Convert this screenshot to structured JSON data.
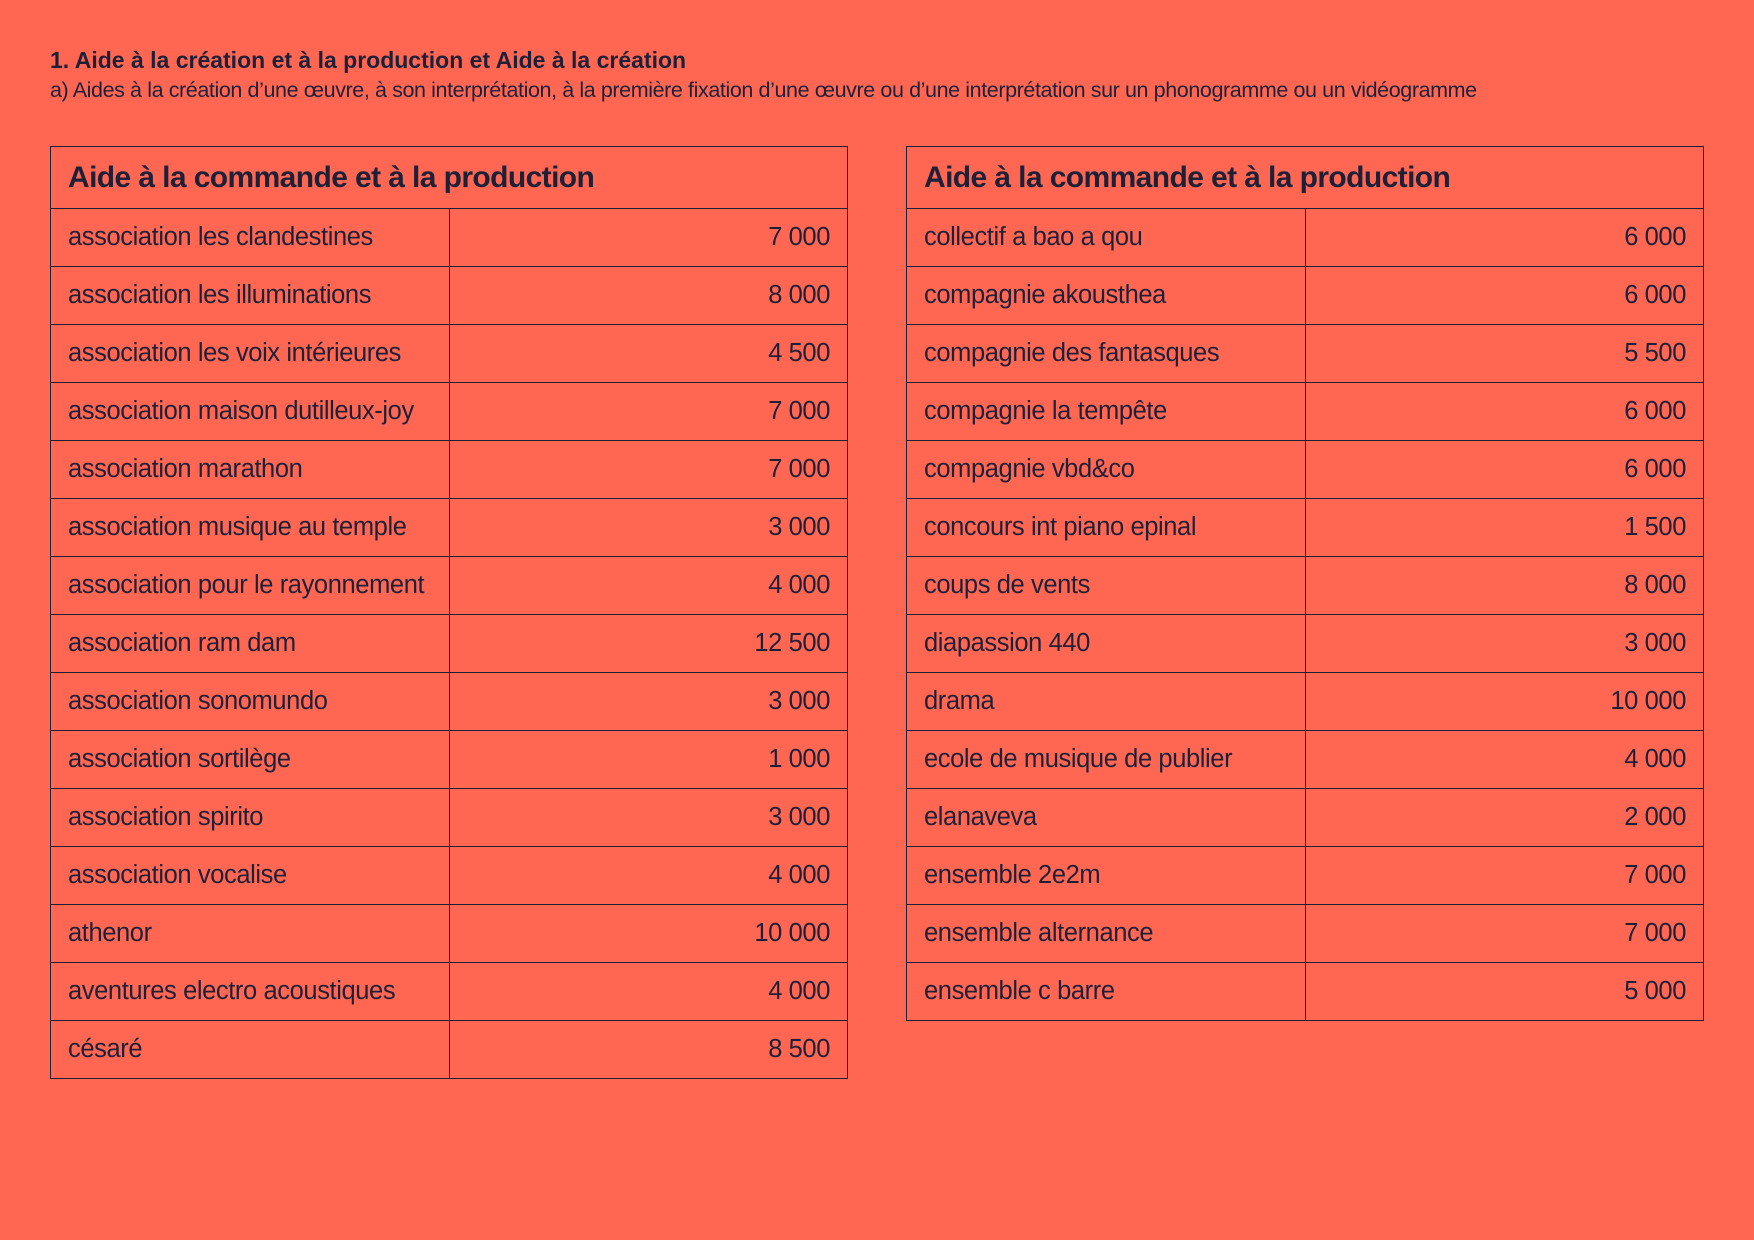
{
  "header": {
    "title": "1. Aide à la création et à la production et Aide à la création",
    "subtitle": "a) Aides à la création d’une œuvre, à son interprétation, à la première fixation d’une œuvre ou d’une interprétation sur un phonogramme ou un vidéogramme"
  },
  "tables": [
    {
      "title": "Aide à la commande et à la production",
      "rows": [
        {
          "name": "association les clandestines",
          "amount": "7 000"
        },
        {
          "name": "association les illuminations",
          "amount": "8 000"
        },
        {
          "name": "association les voix intérieures",
          "amount": "4 500"
        },
        {
          "name": "association maison dutilleux-joy",
          "amount": "7 000"
        },
        {
          "name": "association marathon",
          "amount": "7 000"
        },
        {
          "name": "association musique au temple",
          "amount": "3 000"
        },
        {
          "name": "association pour le rayonnement",
          "amount": "4 000"
        },
        {
          "name": "association ram dam",
          "amount": "12 500"
        },
        {
          "name": "association sonomundo",
          "amount": "3 000"
        },
        {
          "name": "association sortilège",
          "amount": "1 000"
        },
        {
          "name": "association spirito",
          "amount": "3 000"
        },
        {
          "name": "association vocalise",
          "amount": "4 000"
        },
        {
          "name": "athenor",
          "amount": "10 000"
        },
        {
          "name": "aventures electro acoustiques",
          "amount": "4 000"
        },
        {
          "name": "césaré",
          "amount": "8 500"
        }
      ]
    },
    {
      "title": "Aide à la commande et à la production",
      "rows": [
        {
          "name": "collectif a bao a qou",
          "amount": "6 000"
        },
        {
          "name": "compagnie akousthea",
          "amount": "6 000"
        },
        {
          "name": "compagnie des fantasques",
          "amount": "5 500"
        },
        {
          "name": "compagnie la tempête",
          "amount": "6 000"
        },
        {
          "name": "compagnie vbd&co",
          "amount": "6 000"
        },
        {
          "name": "concours int piano epinal",
          "amount": "1 500"
        },
        {
          "name": "coups de vents",
          "amount": "8 000"
        },
        {
          "name": "diapassion 440",
          "amount": "3 000"
        },
        {
          "name": "drama",
          "amount": "10 000"
        },
        {
          "name": "ecole de musique de publier",
          "amount": "4 000"
        },
        {
          "name": "elanaveva",
          "amount": "2 000"
        },
        {
          "name": "ensemble 2e2m",
          "amount": "7 000"
        },
        {
          "name": "ensemble alternance",
          "amount": "7 000"
        },
        {
          "name": "ensemble c barre",
          "amount": "5 000"
        }
      ]
    }
  ]
}
